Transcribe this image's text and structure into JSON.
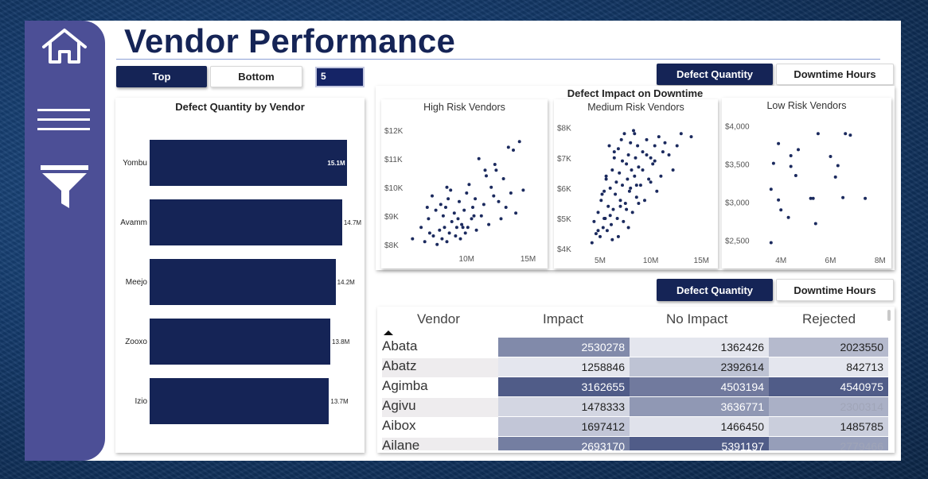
{
  "header": {
    "title": "Vendor Performance"
  },
  "sidebar": {
    "icons": [
      "home-icon",
      "menu-icon",
      "filter-icon"
    ]
  },
  "topn": {
    "top_label": "Top",
    "bottom_label": "Bottom",
    "value": "5"
  },
  "toggles": {
    "scatter": {
      "left": "Defect Quantity",
      "right": "Downtime Hours"
    },
    "table": {
      "left": "Defect Quantity",
      "right": "Downtime Hours"
    }
  },
  "bar_chart": {
    "title": "Defect Quantity by Vendor",
    "vendors": [
      {
        "name": "Yombu",
        "label": "15.1M"
      },
      {
        "name": "Avamm",
        "label": "14.7M"
      },
      {
        "name": "Meejo",
        "label": "14.2M"
      },
      {
        "name": "Zooxo",
        "label": "13.8M"
      },
      {
        "name": "Izio",
        "label": "13.7M"
      }
    ]
  },
  "scatter": {
    "title": "Defect Impact on Downtime",
    "panels": [
      {
        "title": "High Risk Vendors",
        "y_ticks": [
          "$12K",
          "$11K",
          "$10K",
          "$9K",
          "$8K"
        ],
        "x_ticks": [
          "10M",
          "15M"
        ]
      },
      {
        "title": "Medium Risk Vendors",
        "y_ticks": [
          "$8K",
          "$7K",
          "$6K",
          "$5K",
          "$4K"
        ],
        "x_ticks": [
          "5M",
          "10M",
          "15M"
        ]
      },
      {
        "title": "Low Risk Vendors",
        "y_ticks": [
          "$4,000",
          "$3,500",
          "$3,000",
          "$2,500"
        ],
        "x_ticks": [
          "4M",
          "6M",
          "8M"
        ]
      }
    ]
  },
  "table": {
    "columns": [
      "Vendor",
      "Impact",
      "No Impact",
      "Rejected"
    ],
    "rows": [
      {
        "vendor": "Abata",
        "impact": "2530278",
        "no_impact": "1362426",
        "rejected": "2023550"
      },
      {
        "vendor": "Abatz",
        "impact": "1258846",
        "no_impact": "2392614",
        "rejected": "842713"
      },
      {
        "vendor": "Agimba",
        "impact": "3162655",
        "no_impact": "4503194",
        "rejected": "4540975"
      },
      {
        "vendor": "Agivu",
        "impact": "1478333",
        "no_impact": "3636771",
        "rejected": "2300314"
      },
      {
        "vendor": "Aibox",
        "impact": "1697412",
        "no_impact": "1466450",
        "rejected": "1485785"
      },
      {
        "vendor": "Ailane",
        "impact": "2693170",
        "no_impact": "5391197",
        "rejected": "2779466"
      }
    ]
  },
  "chart_data": [
    {
      "type": "bar",
      "title": "Defect Quantity by Vendor",
      "categories": [
        "Yombu",
        "Avamm",
        "Meejo",
        "Zooxo",
        "Izio"
      ],
      "values": [
        15.1,
        14.7,
        14.2,
        13.8,
        13.7
      ],
      "xlim": [
        0,
        15.5
      ]
    },
    {
      "type": "scatter",
      "title": "High Risk Vendors",
      "xlim": [
        5,
        16
      ],
      "ylim": [
        7.8,
        12.3
      ],
      "x": [
        5.6,
        6.3,
        6.6,
        6.9,
        7.0,
        7.3,
        7.5,
        7.6,
        7.8,
        7.9,
        8.0,
        8.1,
        8.2,
        8.3,
        8.4,
        8.5,
        8.6,
        8.8,
        9.0,
        9.1,
        9.2,
        9.3,
        9.4,
        9.5,
        9.6,
        9.8,
        9.9,
        10.0,
        10.1,
        10.2,
        10.4,
        10.5,
        10.7,
        10.8,
        11.0,
        11.2,
        11.4,
        11.6,
        11.8,
        12.0,
        12.2,
        12.4,
        12.6,
        12.8,
        13.0,
        13.2,
        13.4,
        13.6,
        13.8,
        14.0,
        14.3,
        14.6,
        7.2,
        8.7,
        9.7,
        10.6,
        11.5,
        12.3,
        6.8,
        8.4
      ],
      "y": [
        8.2,
        8.6,
        8.1,
        8.9,
        8.4,
        8.3,
        9.2,
        8.0,
        8.5,
        9.4,
        8.2,
        9.0,
        8.6,
        9.3,
        8.1,
        9.6,
        8.4,
        8.8,
        9.1,
        8.3,
        8.6,
        8.9,
        9.5,
        8.2,
        8.7,
        9.2,
        8.4,
        9.8,
        8.6,
        10.1,
        8.9,
        9.3,
        9.6,
        8.5,
        11.0,
        9.0,
        9.4,
        10.4,
        8.7,
        10.0,
        9.7,
        10.6,
        9.5,
        8.9,
        10.3,
        9.3,
        11.4,
        9.8,
        11.3,
        9.1,
        11.6,
        9.9,
        9.7,
        9.9,
        8.6,
        9.0,
        10.6,
        10.8,
        9.3,
        10.0
      ]
    },
    {
      "type": "scatter",
      "title": "Medium Risk Vendors",
      "xlim": [
        2.8,
        16
      ],
      "ylim": [
        3.9,
        8.2
      ],
      "x": [
        4.2,
        4.4,
        4.6,
        4.8,
        5.0,
        5.1,
        5.3,
        5.4,
        5.5,
        5.6,
        5.7,
        5.8,
        5.9,
        6.0,
        6.1,
        6.2,
        6.3,
        6.4,
        6.5,
        6.6,
        6.7,
        6.8,
        6.9,
        7.0,
        7.1,
        7.2,
        7.3,
        7.4,
        7.5,
        7.6,
        7.7,
        7.8,
        7.9,
        8.0,
        8.1,
        8.2,
        8.3,
        8.4,
        8.5,
        8.6,
        8.7,
        8.8,
        9.0,
        9.2,
        9.4,
        9.6,
        9.8,
        10.0,
        10.2,
        10.4,
        10.6,
        10.8,
        11.0,
        11.2,
        11.4,
        11.8,
        12.2,
        12.6,
        13.0,
        14.0,
        4.8,
        5.2,
        5.6,
        6.0,
        6.4,
        6.8,
        7.2,
        7.6,
        8.0,
        8.4,
        8.8,
        9.2,
        9.6,
        10.0,
        10.4,
        5.4,
        6.2,
        7.0,
        7.8,
        8.6
      ],
      "y": [
        4.2,
        4.9,
        4.5,
        5.2,
        4.4,
        5.6,
        4.7,
        5.9,
        5.0,
        6.3,
        4.6,
        5.4,
        7.4,
        6.0,
        4.8,
        6.6,
        5.3,
        7.0,
        5.8,
        6.2,
        5.0,
        7.3,
        6.5,
        5.6,
        7.6,
        6.1,
        4.9,
        7.8,
        5.5,
        6.8,
        6.3,
        7.1,
        5.9,
        7.5,
        6.6,
        5.2,
        7.9,
        6.4,
        7.0,
        5.7,
        7.4,
        6.7,
        6.1,
        7.2,
        5.6,
        7.6,
        6.3,
        7.0,
        6.8,
        7.4,
        5.9,
        7.7,
        6.4,
        7.2,
        7.5,
        7.1,
        6.6,
        7.4,
        7.8,
        7.7,
        4.6,
        5.8,
        6.4,
        5.1,
        7.2,
        4.4,
        6.9,
        5.3,
        6.0,
        7.8,
        5.5,
        6.6,
        7.1,
        6.2,
        6.9,
        5.0,
        4.3,
        5.4,
        4.7,
        6.1
      ]
    },
    {
      "type": "scatter",
      "title": "Low Risk Vendors",
      "xlim": [
        2.9,
        8.2
      ],
      "ylim": [
        2.35,
        4.1
      ],
      "x": [
        3.6,
        3.6,
        3.7,
        3.9,
        3.9,
        4.0,
        4.3,
        4.4,
        4.4,
        4.6,
        4.7,
        5.2,
        5.3,
        5.4,
        5.5,
        6.0,
        6.2,
        6.3,
        6.5,
        6.6,
        6.8,
        7.4
      ],
      "y": [
        2.47,
        3.17,
        3.51,
        3.77,
        3.03,
        2.9,
        2.8,
        3.47,
        3.61,
        3.35,
        3.69,
        3.05,
        3.05,
        2.72,
        3.9,
        3.6,
        3.33,
        3.48,
        3.06,
        3.9,
        3.88,
        3.05
      ]
    }
  ]
}
